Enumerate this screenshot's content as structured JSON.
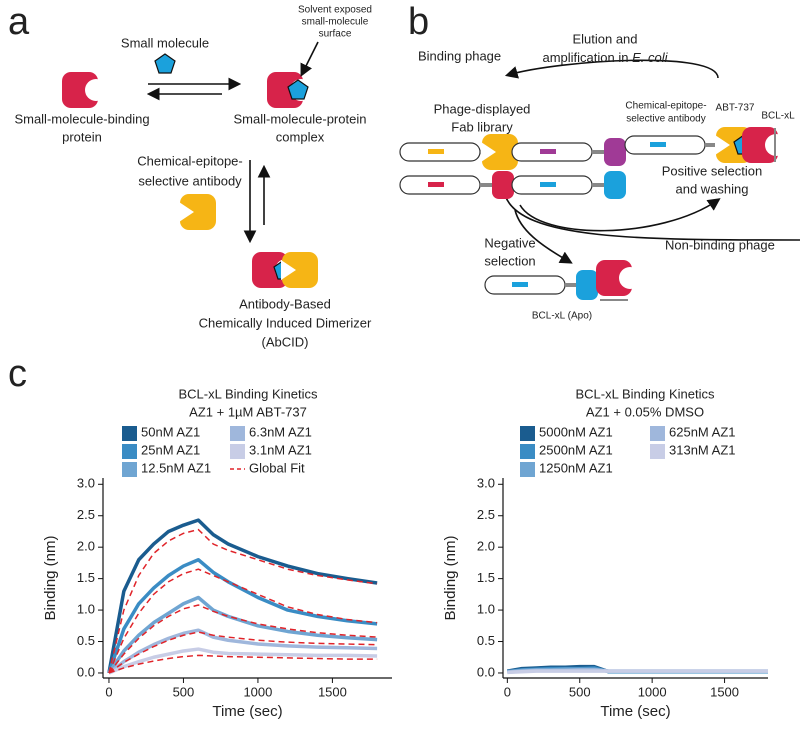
{
  "panel_labels": [
    "a",
    "b",
    "c"
  ],
  "panel_a": {
    "small_molecule": "Small molecule",
    "solvent_surface": [
      "Solvent exposed",
      "small-molecule",
      "surface"
    ],
    "binding_protein": [
      "Small-molecule-binding",
      "protein"
    ],
    "complex": [
      "Small-molecule-protein",
      "complex"
    ],
    "antibody": [
      "Chemical-epitope-",
      "selective antibody"
    ],
    "abcid": [
      "Antibody-Based",
      "Chemically Induced Dimerizer",
      "(AbCID)"
    ]
  },
  "panel_b": {
    "binding_phage": "Binding phage",
    "elution": [
      "Elution and",
      "amplification in ",
      "E. coli"
    ],
    "library": [
      "Phage-displayed",
      "Fab library"
    ],
    "antibody": [
      "Chemical-epitope-",
      "selective antibody"
    ],
    "abt": "ABT-737",
    "bcl": "BCL-xL",
    "positive": [
      "Positive selection",
      "and washing"
    ],
    "non_binding": "Non-binding phage",
    "negative": [
      "Negative",
      "selection"
    ],
    "apo": "BCL-xL (Apo)"
  },
  "chart_data": [
    {
      "type": "line",
      "title": "BCL-xL Binding Kinetics",
      "subtitle": "AZ1 + 1µM ABT-737",
      "x": [
        0,
        100,
        200,
        300,
        400,
        500,
        600,
        700,
        800,
        1000,
        1200,
        1400,
        1600,
        1800
      ],
      "series": [
        {
          "name": "50nM AZ1",
          "color": "#1a5c8f",
          "values": [
            0,
            1.3,
            1.8,
            2.05,
            2.25,
            2.35,
            2.43,
            2.2,
            2.05,
            1.85,
            1.7,
            1.58,
            1.5,
            1.43
          ]
        },
        {
          "name": "25nM AZ1",
          "color": "#3a8cc4",
          "values": [
            0,
            0.7,
            1.1,
            1.35,
            1.55,
            1.7,
            1.8,
            1.6,
            1.45,
            1.2,
            1.0,
            0.9,
            0.83,
            0.78
          ]
        },
        {
          "name": "12.5nM AZ1",
          "color": "#6fa5d2",
          "values": [
            0,
            0.35,
            0.6,
            0.8,
            0.95,
            1.1,
            1.2,
            1.0,
            0.9,
            0.75,
            0.66,
            0.6,
            0.56,
            0.53
          ]
        },
        {
          "name": "6.3nM AZ1",
          "color": "#9fb7dc",
          "values": [
            0,
            0.18,
            0.33,
            0.45,
            0.55,
            0.63,
            0.68,
            0.57,
            0.52,
            0.46,
            0.43,
            0.41,
            0.4,
            0.39
          ]
        },
        {
          "name": "3.1nM AZ1",
          "color": "#c8cde6",
          "values": [
            0,
            0.1,
            0.18,
            0.25,
            0.3,
            0.35,
            0.38,
            0.33,
            0.31,
            0.3,
            0.29,
            0.28,
            0.28,
            0.27
          ]
        },
        {
          "name": "Global Fit",
          "color": "#e0242a",
          "style": "dashed",
          "lines": [
            [
              0,
              1.0,
              1.55,
              1.9,
              2.1,
              2.22,
              2.28,
              2.05,
              1.95,
              1.8,
              1.65,
              1.55,
              1.48,
              1.42
            ],
            [
              0,
              0.55,
              0.95,
              1.25,
              1.45,
              1.58,
              1.65,
              1.55,
              1.45,
              1.25,
              1.05,
              0.93,
              0.85,
              0.8
            ],
            [
              0,
              0.3,
              0.55,
              0.75,
              0.9,
              1.02,
              1.08,
              0.98,
              0.9,
              0.78,
              0.7,
              0.64,
              0.6,
              0.57
            ],
            [
              0,
              0.17,
              0.3,
              0.42,
              0.52,
              0.6,
              0.65,
              0.6,
              0.57,
              0.52,
              0.49,
              0.47,
              0.46,
              0.45
            ],
            [
              0,
              0.08,
              0.14,
              0.19,
              0.23,
              0.26,
              0.28,
              0.27,
              0.26,
              0.25,
              0.24,
              0.23,
              0.22,
              0.22
            ]
          ]
        }
      ],
      "xlim": [
        -40,
        1900
      ],
      "ylim": [
        -0.08,
        3.1
      ],
      "xticks": [
        0,
        500,
        1000,
        1500
      ],
      "yticks": [
        {
          "value": 0,
          "label": "0.0"
        },
        0.5,
        {
          "value": 1,
          "label": "1.0"
        },
        1.5,
        {
          "value": 2,
          "label": "2.0"
        },
        2.5,
        {
          "value": 3,
          "label": "3.0"
        }
      ],
      "xlabel": "Time (sec)",
      "ylabel": "Binding (nm)"
    },
    {
      "type": "line",
      "title": "BCL-xL Binding Kinetics",
      "subtitle": "AZ1 + 0.05% DMSO",
      "x": [
        0,
        100,
        200,
        300,
        400,
        500,
        600,
        700,
        800,
        1000,
        1200,
        1400,
        1600,
        1800
      ],
      "series": [
        {
          "name": "5000nM AZ1",
          "color": "#1a5c8f",
          "values": [
            0.03,
            0.07,
            0.08,
            0.09,
            0.09,
            0.1,
            0.1,
            0.02,
            0.02,
            0.02,
            0.02,
            0.02,
            0.02,
            0.02
          ]
        },
        {
          "name": "2500nM AZ1",
          "color": "#3a8cc4",
          "values": [
            0.02,
            0.05,
            0.06,
            0.07,
            0.07,
            0.07,
            0.08,
            0.02,
            0.02,
            0.02,
            0.02,
            0.02,
            0.02,
            0.02
          ]
        },
        {
          "name": "1250nM AZ1",
          "color": "#6fa5d2",
          "values": [
            0.02,
            0.04,
            0.05,
            0.05,
            0.06,
            0.06,
            0.06,
            0.03,
            0.03,
            0.03,
            0.03,
            0.03,
            0.03,
            0.03
          ]
        },
        {
          "name": "625nM AZ1",
          "color": "#9fb7dc",
          "values": [
            0.01,
            0.03,
            0.04,
            0.04,
            0.04,
            0.05,
            0.05,
            0.03,
            0.03,
            0.03,
            0.03,
            0.03,
            0.03,
            0.03
          ]
        },
        {
          "name": "313nM AZ1",
          "color": "#c8cde6",
          "values": [
            0.01,
            0.02,
            0.03,
            0.03,
            0.03,
            0.03,
            0.03,
            0.03,
            0.03,
            0.03,
            0.03,
            0.03,
            0.03,
            0.03
          ]
        }
      ],
      "xlim": [
        -30,
        1800
      ],
      "ylim": [
        -0.08,
        3.1
      ],
      "xticks": [
        0,
        500,
        1000,
        1500
      ],
      "yticks": [
        {
          "value": 0,
          "label": "0.0"
        },
        0.5,
        {
          "value": 1,
          "label": "1.0"
        },
        1.5,
        {
          "value": 2,
          "label": "2.0"
        },
        2.5,
        {
          "value": 3,
          "label": "3.0"
        }
      ],
      "xlabel": "Time (sec)",
      "ylabel": "Binding (nm)"
    }
  ]
}
